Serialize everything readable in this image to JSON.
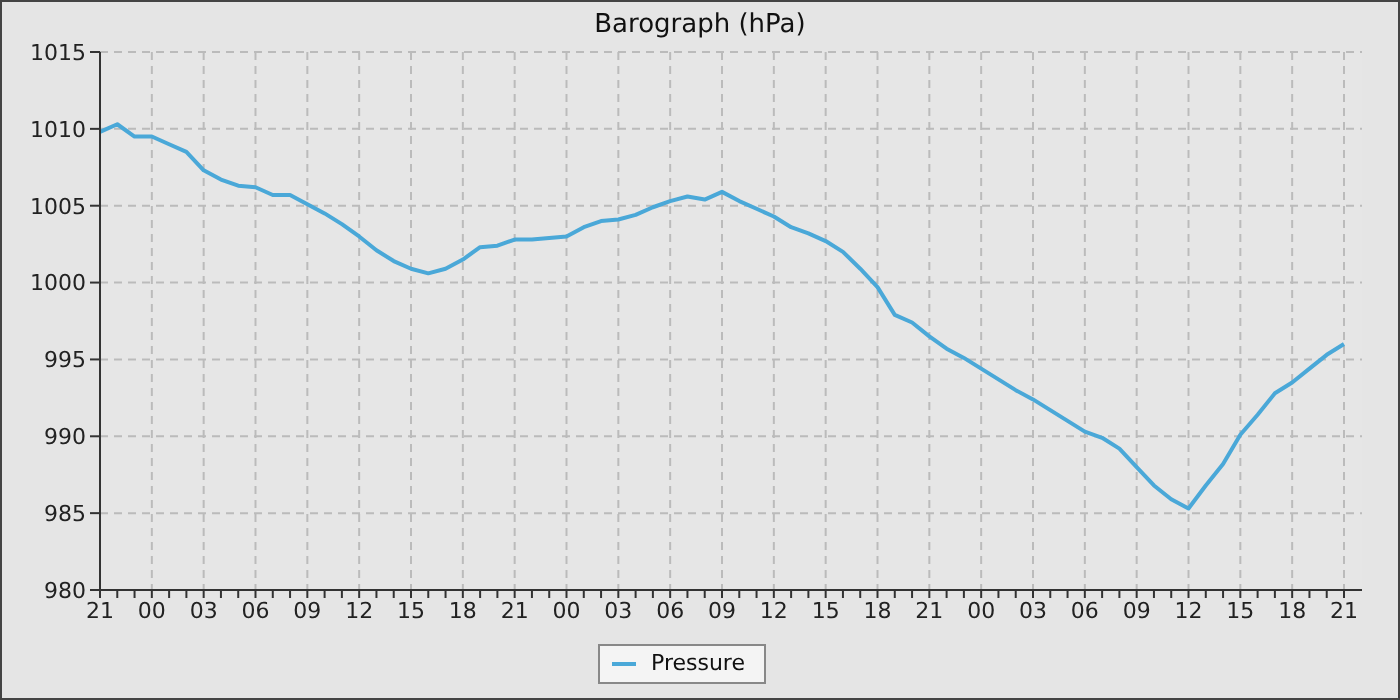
{
  "chart_data": {
    "type": "line",
    "title": "Barograph (hPa)",
    "categories": [
      "21",
      null,
      null,
      "00",
      null,
      null,
      "03",
      null,
      null,
      "06",
      null,
      null,
      "09",
      null,
      null,
      "12",
      null,
      null,
      "15",
      null,
      null,
      "18",
      null,
      null,
      "21",
      null,
      null,
      "00",
      null,
      null,
      "03",
      null,
      null,
      "06",
      null,
      null,
      "09",
      null,
      null,
      "12",
      null,
      null,
      "15",
      null,
      null,
      "18",
      null,
      null,
      "21",
      null,
      null,
      "00",
      null,
      null,
      "03",
      null,
      null,
      "06",
      null,
      null,
      "09",
      null,
      null,
      "12",
      null,
      null,
      "15",
      null,
      null,
      "18",
      null,
      null,
      "21"
    ],
    "series": [
      {
        "name": "Pressure",
        "color": "#4aa8d8",
        "values": [
          1009.8,
          1010.3,
          1009.5,
          1009.5,
          1009.0,
          1008.5,
          1007.3,
          1006.7,
          1006.3,
          1006.2,
          1005.7,
          1005.7,
          1005.1,
          1004.5,
          1003.8,
          1003.0,
          1002.1,
          1001.4,
          1000.9,
          1000.6,
          1000.9,
          1001.5,
          1002.3,
          1002.4,
          1002.8,
          1002.8,
          1002.9,
          1003.0,
          1003.6,
          1004.0,
          1004.1,
          1004.4,
          1004.9,
          1005.3,
          1005.6,
          1005.4,
          1005.9,
          1005.3,
          1004.8,
          1004.3,
          1003.6,
          1003.2,
          1002.7,
          1002.0,
          1000.9,
          999.7,
          997.9,
          997.4,
          996.5,
          995.7,
          995.1,
          994.4,
          993.7,
          993.0,
          992.4,
          991.7,
          991.0,
          990.3,
          989.9,
          989.2,
          988.0,
          986.8,
          985.9,
          985.3,
          986.8,
          988.2,
          990.1,
          991.4,
          992.8,
          993.5,
          994.4,
          995.3,
          996.0
        ]
      }
    ],
    "ylim": [
      980,
      1015
    ],
    "yticks": [
      980,
      985,
      990,
      995,
      1000,
      1005,
      1010,
      1015
    ],
    "grid": true,
    "legend": "bottom",
    "marker": "none",
    "line_style": "solid"
  }
}
